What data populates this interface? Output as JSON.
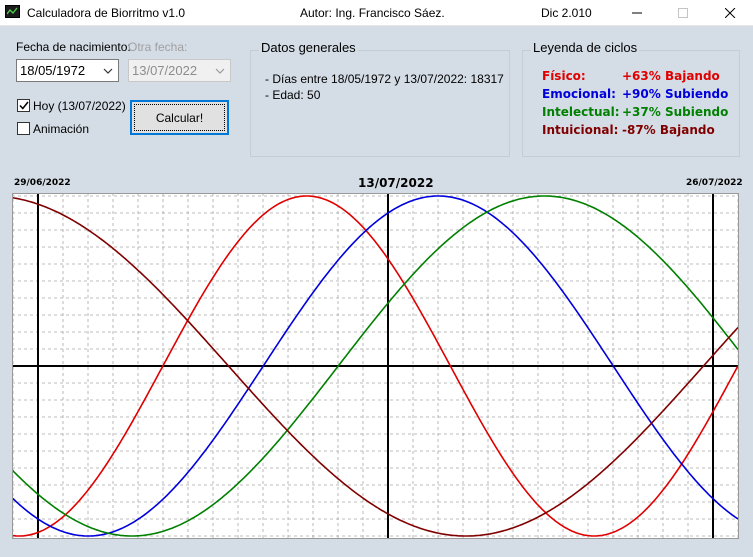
{
  "titlebar": {
    "title": "Calculadora de Biorritmo v1.0",
    "author": "Autor: Ing. Francisco Sáez.",
    "version": "Dic 2.010"
  },
  "form": {
    "birth_label": "Fecha de nacimiento:",
    "birth_value": "18/05/1972",
    "other_label": "Otra fecha:",
    "other_value": "13/07/2022",
    "today_label": "Hoy (13/07/2022)",
    "today_checked": true,
    "animation_label": "Animación",
    "animation_checked": false,
    "calc_button": "Calcular!"
  },
  "general": {
    "title": "Datos generales",
    "days_line": "- Días entre 18/05/1972 y 13/07/2022: 18317",
    "age_line": "- Edad: 50"
  },
  "legend": {
    "title": "Leyenda de ciclos",
    "items": [
      {
        "name": "Físico:",
        "value": "+63% Bajando",
        "color": "#e00000"
      },
      {
        "name": "Emocional:",
        "value": "+90% Subiendo",
        "color": "#0000dd"
      },
      {
        "name": "Intelectual:",
        "value": "+37% Subiendo",
        "color": "#008000"
      },
      {
        "name": "Intuicional:",
        "value": "-87% Bajando",
        "color": "#800000"
      }
    ]
  },
  "chart_labels": {
    "start": "29/06/2022",
    "center": "13/07/2022",
    "end": "26/07/2022"
  },
  "chart_data": {
    "type": "line",
    "x_range": [
      "29/06/2022",
      "26/07/2022"
    ],
    "today": "13/07/2022",
    "y_range": [
      -100,
      100
    ],
    "grid": true,
    "series": [
      {
        "name": "Físico",
        "period_days": 23,
        "today_value": 63,
        "trend": "Bajando",
        "color": "#e00000"
      },
      {
        "name": "Emocional",
        "period_days": 28,
        "today_value": 90,
        "trend": "Subiendo",
        "color": "#0000dd"
      },
      {
        "name": "Intelectual",
        "period_days": 33,
        "today_value": 37,
        "trend": "Subiendo",
        "color": "#008000"
      },
      {
        "name": "Intuicional",
        "period_days": 38,
        "today_value": -87,
        "trend": "Bajando",
        "color": "#800000"
      }
    ]
  }
}
